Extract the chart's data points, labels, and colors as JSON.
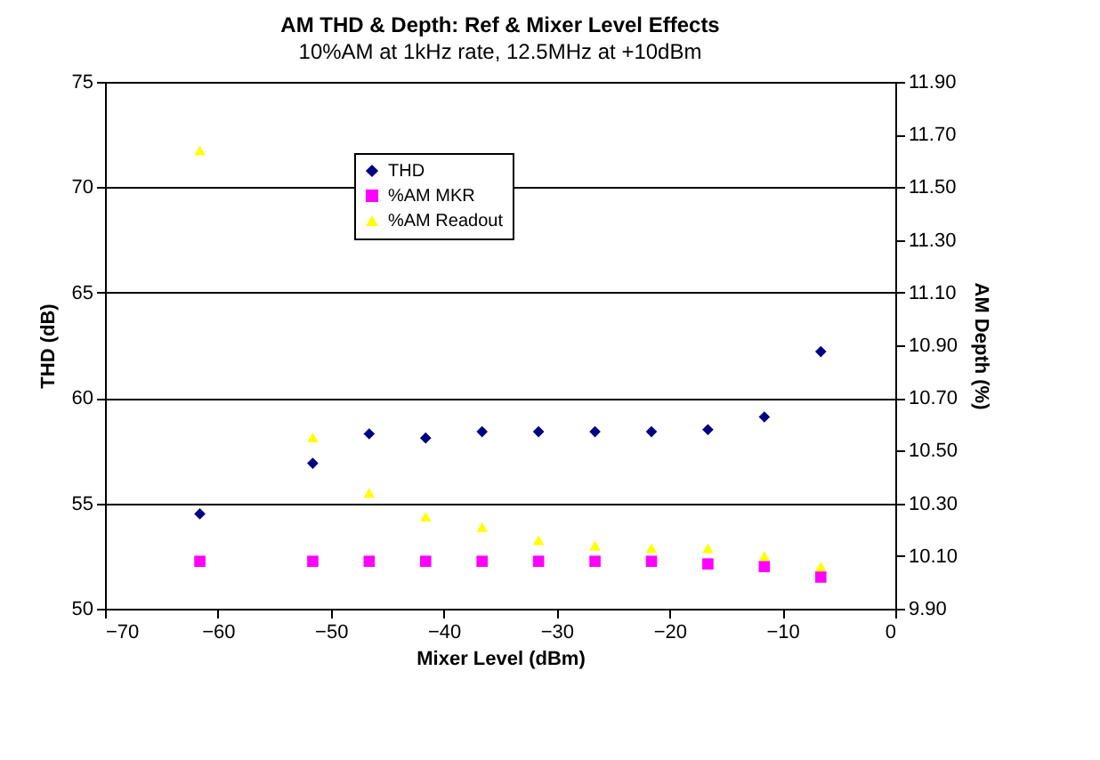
{
  "chart_data": {
    "type": "scatter",
    "title": "AM THD & Depth: Ref & Mixer Level Effects",
    "subtitle": "10%AM at 1kHz rate, 12.5MHz at +10dBm",
    "xlabel": "Mixer Level (dBm)",
    "ylabel": "THD (dB)",
    "y2label": "AM Depth (%)",
    "x": [
      -61.6,
      -51.6,
      -46.6,
      -41.6,
      -36.6,
      -31.6,
      -26.6,
      -21.6,
      -16.6,
      -11.6,
      -6.6
    ],
    "series": [
      {
        "name": "THD",
        "color": "#000080",
        "marker": "diamond",
        "values": [
          54.5,
          56.9,
          58.3,
          58.1,
          58.4,
          58.4,
          58.4,
          58.4,
          58.5,
          59.1,
          62.2
        ]
      },
      {
        "name": "%AM MKR",
        "color": "#ff00ff",
        "marker": "square",
        "axis": "y2",
        "values": [
          10.08,
          10.08,
          10.08,
          10.08,
          10.08,
          10.08,
          10.08,
          10.08,
          10.07,
          10.06,
          10.02
        ]
      },
      {
        "name": "%AM Readout",
        "color": "#ffff00",
        "marker": "triangle",
        "axis": "y2",
        "values": [
          11.64,
          10.55,
          10.34,
          10.25,
          10.21,
          10.16,
          10.14,
          10.13,
          10.13,
          10.1,
          10.06
        ]
      }
    ],
    "xlim": [
      -70,
      0
    ],
    "xticks": [
      -70,
      -60,
      -50,
      -40,
      -30,
      -20,
      -10,
      0
    ],
    "ylim": [
      50,
      75
    ],
    "yticks": [
      50,
      55,
      60,
      65,
      70,
      75
    ],
    "y2lim": [
      9.9,
      11.9
    ],
    "y2ticks": [
      {
        "value": 9.9,
        "label": "9.90"
      },
      {
        "value": 10.1,
        "label": "10.10"
      },
      {
        "value": 10.3,
        "label": "10.30"
      },
      {
        "value": 10.5,
        "label": "10.50"
      },
      {
        "value": 10.7,
        "label": "10.70"
      },
      {
        "value": 10.9,
        "label": "10.90"
      },
      {
        "value": 11.1,
        "label": "11.10"
      },
      {
        "value": 11.3,
        "label": "11.30"
      },
      {
        "value": 11.5,
        "label": "11.50"
      },
      {
        "value": 11.7,
        "label": "11.70"
      },
      {
        "value": 11.9,
        "label": "11.90"
      }
    ],
    "grid": "y",
    "legend": "top left"
  }
}
